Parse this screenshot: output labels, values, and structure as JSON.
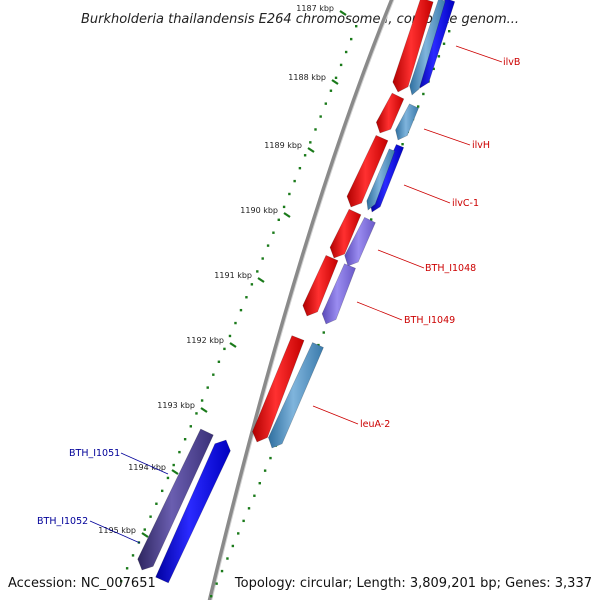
{
  "title": "Burkholderia thailandensis E264 chromosome I, complete genom...",
  "accession": "Accession: NC_007651",
  "topology": "Topology: circular; Length: 3,809,201 bp; Genes: 3,337",
  "ticks": [
    "1187 kbp",
    "1188 kbp",
    "1189 kbp",
    "1190 kbp",
    "1191 kbp",
    "1192 kbp",
    "1193 kbp",
    "1194 kbp",
    "1195 kbp"
  ],
  "genes": [
    {
      "name": "ilvB",
      "color": "#cc0000"
    },
    {
      "name": "ilvH",
      "color": "#cc0000"
    },
    {
      "name": "ilvC-1",
      "color": "#cc0000"
    },
    {
      "name": "BTH_I1048",
      "color": "#cc0000"
    },
    {
      "name": "BTH_I1049",
      "color": "#cc0000"
    },
    {
      "name": "leuA-2",
      "color": "#cc0000"
    },
    {
      "name": "BTH_I1051",
      "color": "#000099"
    },
    {
      "name": "BTH_I1052",
      "color": "#000099"
    }
  ],
  "colors": {
    "forward_cds": "#ff0000",
    "orf_blue": "#0000ee",
    "orf_steel": "#4a8cc0",
    "orf_purple": "#7a6ad8",
    "orf_dark_purple": "#4a3f8c",
    "gc_track": "#1a7a1a",
    "backbone": "#888888"
  }
}
